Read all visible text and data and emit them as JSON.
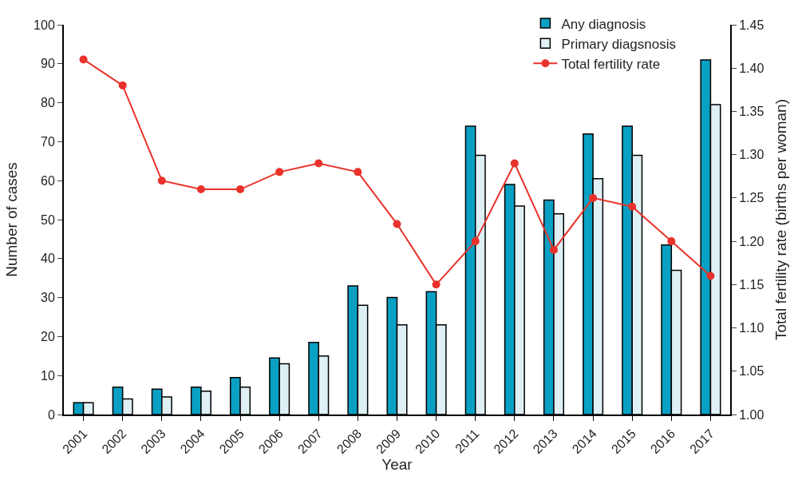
{
  "chart_data": {
    "type": "bar",
    "xlabel": "Year",
    "ylabel": "Number of cases",
    "y2label": "Total fertility rate (births per woman)",
    "categories": [
      "2001",
      "2002",
      "2003",
      "2004",
      "2005",
      "2006",
      "2007",
      "2008",
      "2009",
      "2010",
      "2011",
      "2012",
      "2013",
      "2014",
      "2015",
      "2016",
      "2017"
    ],
    "series": [
      {
        "name": "Any diagnosis",
        "color": "#0aa0c4",
        "values": [
          3,
          7,
          6.5,
          7,
          9.5,
          14.5,
          18.5,
          33,
          30,
          31.5,
          74,
          59,
          55,
          72,
          74,
          43.5,
          91
        ]
      },
      {
        "name": "Primary diagsnosis",
        "color": "#dff0f5",
        "values": [
          3,
          4,
          4.5,
          6,
          7,
          13,
          15,
          28,
          23,
          23,
          66.5,
          53.5,
          51.5,
          60.5,
          66.5,
          37,
          79.5
        ]
      },
      {
        "name": "Total fertility rate",
        "color": "#e8322a",
        "type": "line",
        "axis": "y2",
        "values": [
          1.41,
          1.38,
          1.27,
          1.26,
          1.26,
          1.28,
          1.29,
          1.28,
          1.22,
          1.15,
          1.2,
          1.29,
          1.19,
          1.25,
          1.24,
          1.2,
          1.16
        ]
      }
    ],
    "ylim": [
      0,
      100
    ],
    "yticks": [
      0,
      10,
      20,
      30,
      40,
      50,
      60,
      70,
      80,
      90,
      100
    ],
    "y2lim": [
      1.0,
      1.45
    ],
    "y2ticks": [
      {
        "value": 1.0,
        "label": "1.00"
      },
      {
        "value": 1.05,
        "label": "1.05"
      },
      {
        "value": 1.1,
        "label": "1.10"
      },
      {
        "value": 1.15,
        "label": "1.15"
      },
      {
        "value": 1.2,
        "label": "1.20"
      },
      {
        "value": 1.25,
        "label": "1.25"
      },
      {
        "value": 1.3,
        "label": "1.30"
      },
      {
        "value": 1.35,
        "label": "1.35"
      },
      {
        "value": 1.4,
        "label": "1.40"
      },
      {
        "value": 1.45,
        "label": "1.45"
      }
    ],
    "legend": "top right",
    "marker": "circle",
    "line_style": "solid"
  }
}
